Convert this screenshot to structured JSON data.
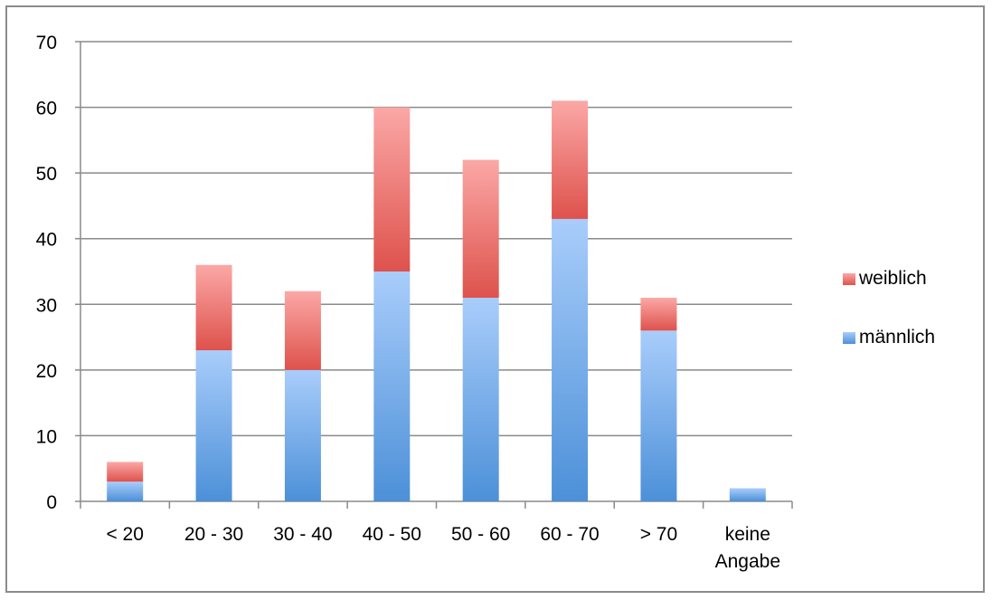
{
  "chart_data": {
    "type": "bar",
    "stacked": true,
    "categories": [
      "< 20",
      "20 - 30",
      "30 - 40",
      "40 - 50",
      "50 - 60",
      "60 - 70",
      "> 70",
      "keine Angabe"
    ],
    "series": [
      {
        "name": "männlich",
        "values": [
          3,
          23,
          20,
          35,
          31,
          43,
          26,
          2
        ],
        "color": "#5b9bd5"
      },
      {
        "name": "weiblich",
        "values": [
          3,
          13,
          12,
          25,
          21,
          18,
          5,
          0
        ],
        "color": "#e06666"
      }
    ],
    "ylim": [
      0,
      70
    ],
    "yticks": [
      0,
      10,
      20,
      30,
      40,
      50,
      60,
      70
    ],
    "grid": true,
    "legend": "right"
  },
  "legend": {
    "items": [
      {
        "label": "weiblich",
        "color": "#e06666"
      },
      {
        "label": "männlich",
        "color": "#5b9bd5"
      }
    ]
  }
}
